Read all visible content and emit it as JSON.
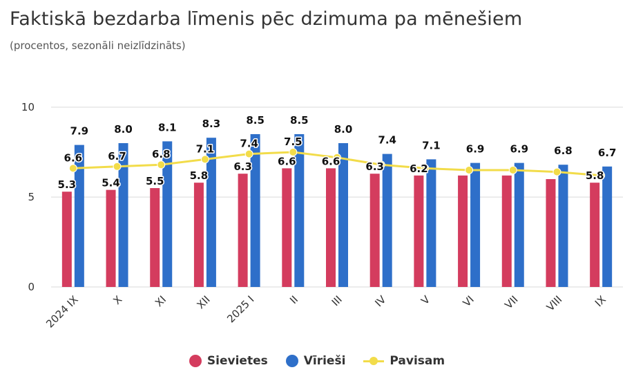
{
  "title": "Faktiskā bezdarba līmenis pēc dzimuma pa mēnešiem",
  "subtitle": "(procentos, sezonāli neizlīdzināts)",
  "colors": {
    "women": "#d43c5e",
    "men": "#2e6fc9",
    "total": "#f2dc4a",
    "grid": "#d9d9d9",
    "axis_text": "#333333"
  },
  "chart_data": {
    "type": "bar",
    "categories": [
      "2024 IX",
      "X",
      "XI",
      "XII",
      "2025 I",
      "II",
      "III",
      "IV",
      "V",
      "VI",
      "VII",
      "VIII",
      "IX"
    ],
    "series": [
      {
        "name": "Sievietes",
        "type": "bar",
        "values": [
          5.3,
          5.4,
          5.5,
          5.8,
          6.3,
          6.6,
          6.6,
          6.3,
          6.2,
          6.2,
          6.2,
          6.0,
          5.8
        ],
        "labels": [
          "5.3",
          "5.4",
          "5.5",
          "5.8",
          "6.3",
          "6.6",
          "6.6",
          "6.3",
          "6.2",
          "",
          "",
          "",
          "5.8"
        ]
      },
      {
        "name": "Vīrieši",
        "type": "bar",
        "values": [
          7.9,
          8.0,
          8.1,
          8.3,
          8.5,
          8.5,
          8.0,
          7.4,
          7.1,
          6.9,
          6.9,
          6.8,
          6.7
        ],
        "labels": [
          "7.9",
          "8.0",
          "8.1",
          "8.3",
          "8.5",
          "8.5",
          "8.0",
          "7.4",
          "7.1",
          "6.9",
          "6.9",
          "6.8",
          "6.7"
        ]
      },
      {
        "name": "Pavisam",
        "type": "line",
        "values": [
          6.6,
          6.7,
          6.8,
          7.1,
          7.4,
          7.5,
          7.2,
          6.8,
          6.6,
          6.5,
          6.5,
          6.4,
          6.2
        ],
        "labels": [
          "6.6",
          "6.7",
          "6.8",
          "7.1",
          "7.4",
          "7.5",
          "",
          "",
          "",
          "",
          "",
          "",
          ""
        ]
      }
    ],
    "yticks": [
      "0",
      "5",
      "10"
    ],
    "ylim": [
      0,
      10
    ],
    "xlabel": "",
    "ylabel": "",
    "legend_position": "bottom-center"
  },
  "legend": [
    {
      "label": "Sievietes",
      "kind": "dot"
    },
    {
      "label": "Vīrieši",
      "kind": "dot"
    },
    {
      "label": "Pavisam",
      "kind": "line"
    }
  ]
}
